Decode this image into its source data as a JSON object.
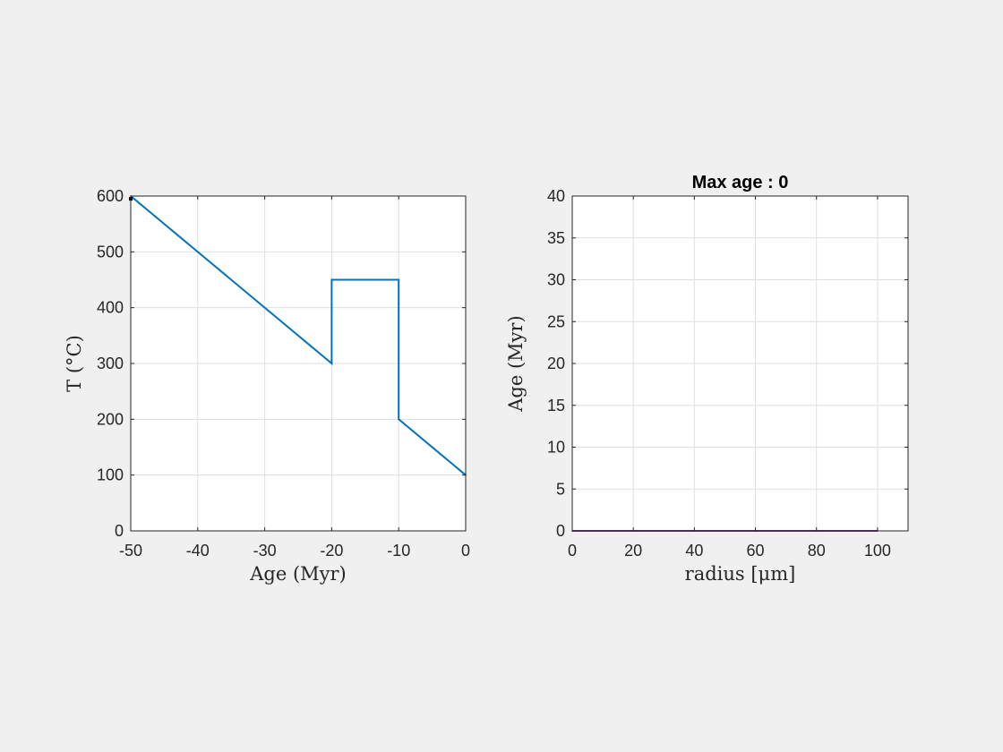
{
  "chart_data": [
    {
      "type": "line",
      "title": "",
      "xlabel": "Age (Myr)",
      "ylabel": "T (°C)",
      "xlim": [
        -50,
        0
      ],
      "ylim": [
        0,
        600
      ],
      "xticks": [
        -50,
        -40,
        -30,
        -20,
        -10,
        0
      ],
      "yticks": [
        0,
        100,
        200,
        300,
        400,
        500,
        600
      ],
      "xtick_labels": [
        "-50",
        "-40",
        "-30",
        "-20",
        "-10",
        "0"
      ],
      "ytick_labels": [
        "0",
        "100",
        "200",
        "300",
        "400",
        "500",
        "600"
      ],
      "grid": true,
      "series": [
        {
          "color": "#0072bd",
          "x": [
            -50,
            -20,
            -20,
            -10,
            -10,
            0
          ],
          "y": [
            600,
            300,
            450,
            450,
            200,
            100
          ]
        }
      ],
      "markers": [
        {
          "x": -50,
          "y": 595,
          "color": "#000000"
        }
      ]
    },
    {
      "type": "line",
      "title": "Max age : 0",
      "xlabel": "radius [μm]",
      "ylabel": "Age (Myr)",
      "xlim": [
        0,
        110
      ],
      "ylim": [
        0,
        40
      ],
      "xticks": [
        0,
        20,
        40,
        60,
        80,
        100
      ],
      "yticks": [
        0,
        5,
        10,
        15,
        20,
        25,
        30,
        35,
        40
      ],
      "xtick_labels": [
        "0",
        "20",
        "40",
        "60",
        "80",
        "100"
      ],
      "ytick_labels": [
        "0",
        "5",
        "10",
        "15",
        "20",
        "25",
        "30",
        "35",
        "40"
      ],
      "grid": true,
      "series": [
        {
          "color": "#7e2f8e",
          "x": [
            0,
            100
          ],
          "y": [
            0,
            0
          ]
        }
      ]
    }
  ]
}
